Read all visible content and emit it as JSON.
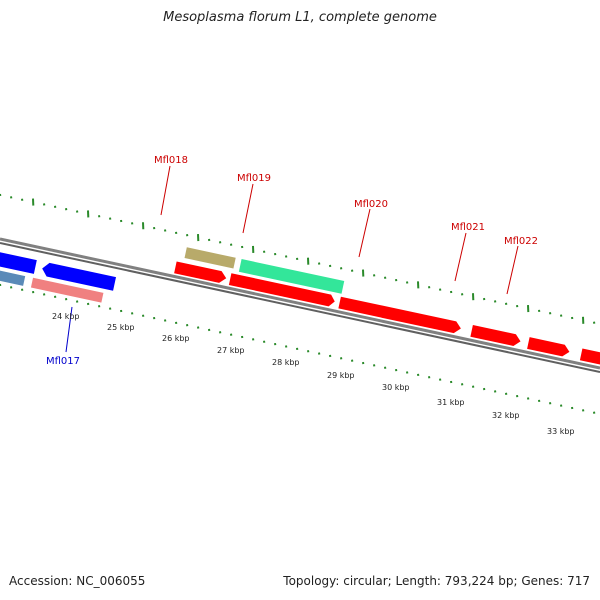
{
  "title": "Mesoplasma florum L1, complete genome",
  "accession_label": "Accession: NC_006055",
  "summary_label": "Topology: circular; Length: 793,224 bp; Genes: 717",
  "ticks": [
    "24 kbp",
    "25 kbp",
    "26 kbp",
    "27 kbp",
    "28 kbp",
    "29 kbp",
    "30 kbp",
    "31 kbp",
    "32 kbp",
    "33 kbp"
  ],
  "gene_labels": [
    {
      "id": "g017",
      "text": "Mfl017",
      "color": "#0000cc"
    },
    {
      "id": "g018",
      "text": "Mfl018",
      "color": "#cc0000"
    },
    {
      "id": "g019",
      "text": "Mfl019",
      "color": "#cc0000"
    },
    {
      "id": "g020",
      "text": "Mfl020",
      "color": "#cc0000"
    },
    {
      "id": "g021",
      "text": "Mfl021",
      "color": "#cc0000"
    },
    {
      "id": "g022",
      "text": "Mfl022",
      "color": "#cc0000"
    }
  ],
  "colors": {
    "forward_cds": "#ff0000",
    "reverse_cds": "#0000ff",
    "reverse_light": "#5a8ab8",
    "pink_feature": "#f08080",
    "olive_feature": "#b8aa6a",
    "teal_feature": "#33e69a",
    "backbone": "#808080",
    "tick": "#2a8a2a"
  }
}
